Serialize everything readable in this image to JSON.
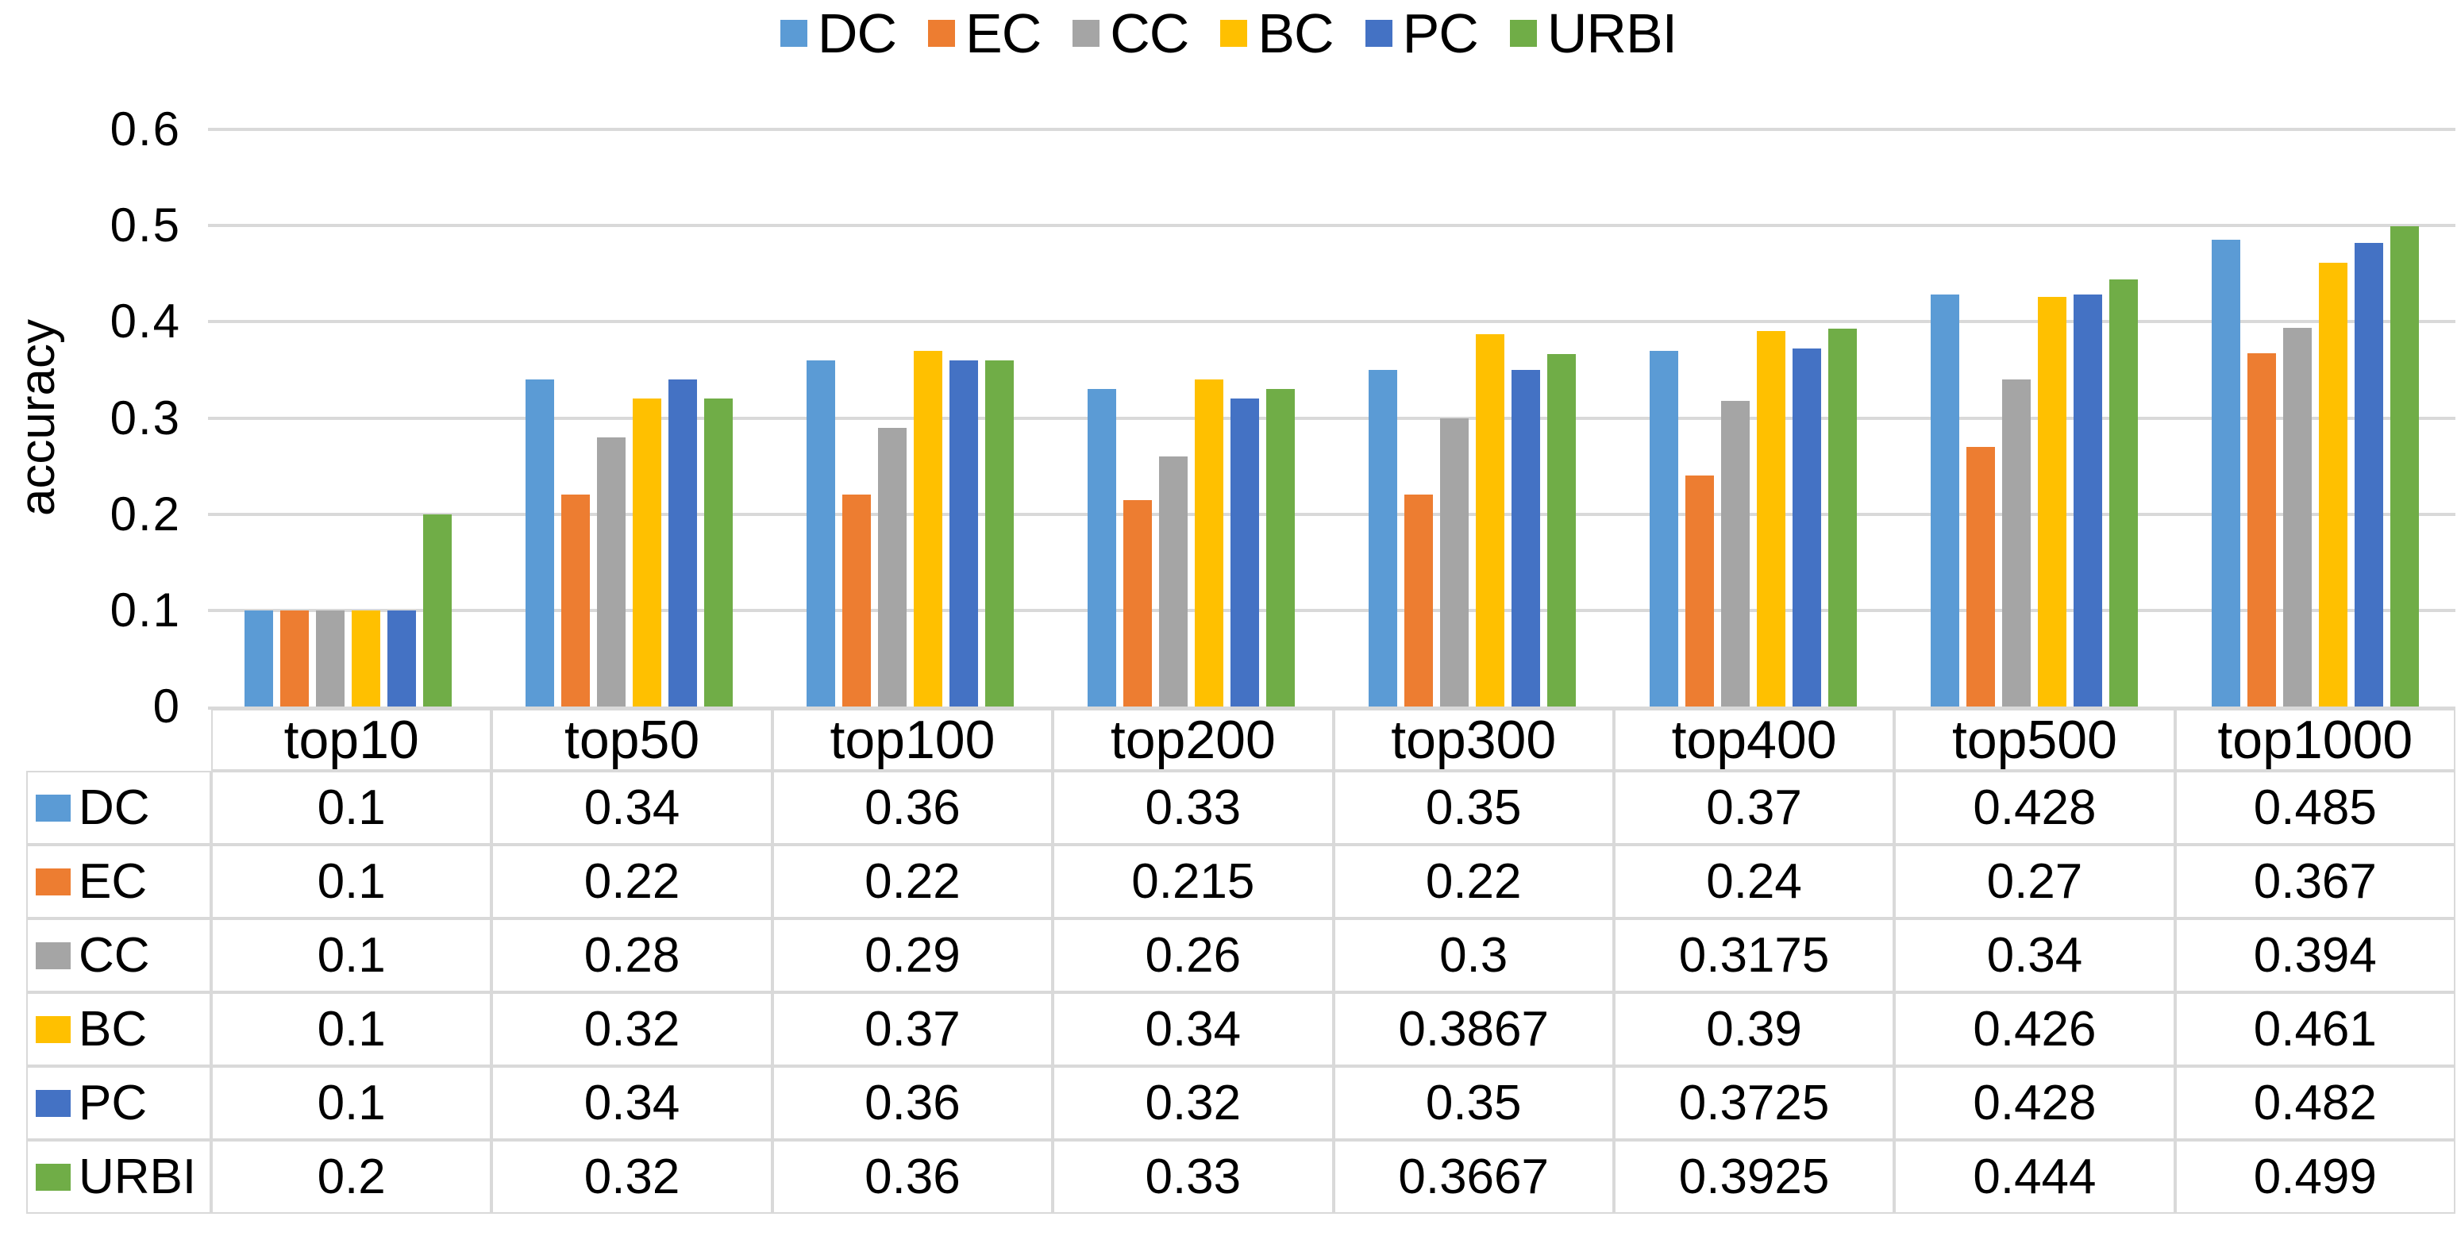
{
  "chart_data": {
    "type": "bar",
    "title": "",
    "ylabel": "accuracy",
    "xlabel": "",
    "categories": [
      "top10",
      "top50",
      "top100",
      "top200",
      "top300",
      "top400",
      "top500",
      "top1000"
    ],
    "series": [
      {
        "name": "DC",
        "color": "#5B9BD5",
        "values": [
          0.1,
          0.34,
          0.36,
          0.33,
          0.35,
          0.37,
          0.428,
          0.485
        ]
      },
      {
        "name": "EC",
        "color": "#ED7D31",
        "values": [
          0.1,
          0.22,
          0.22,
          0.215,
          0.22,
          0.24,
          0.27,
          0.367
        ]
      },
      {
        "name": "CC",
        "color": "#A5A5A5",
        "values": [
          0.1,
          0.28,
          0.29,
          0.26,
          0.3,
          0.3175,
          0.34,
          0.394
        ]
      },
      {
        "name": "BC",
        "color": "#FFC000",
        "values": [
          0.1,
          0.32,
          0.37,
          0.34,
          0.3867,
          0.39,
          0.426,
          0.461
        ]
      },
      {
        "name": "PC",
        "color": "#4472C4",
        "values": [
          0.1,
          0.34,
          0.36,
          0.32,
          0.35,
          0.3725,
          0.428,
          0.482
        ]
      },
      {
        "name": "URBI",
        "color": "#70AD47",
        "values": [
          0.2,
          0.32,
          0.36,
          0.33,
          0.3667,
          0.3925,
          0.444,
          0.499
        ]
      }
    ],
    "ylim": [
      0,
      0.6
    ],
    "yticks": [
      {
        "value": 0.6,
        "label": "0.6"
      },
      {
        "value": 0.5,
        "label": "0.5"
      },
      {
        "value": 0.4,
        "label": "0.4"
      },
      {
        "value": 0.3,
        "label": "0.3"
      },
      {
        "value": 0.2,
        "label": "0.2"
      },
      {
        "value": 0.1,
        "label": "0.1"
      },
      {
        "value": 0,
        "label": "0"
      }
    ],
    "grid": true,
    "legend_position": "top",
    "legend": [
      "DC",
      "EC",
      "CC",
      "BC",
      "PC",
      "URBI"
    ]
  },
  "table": {
    "header": [
      "top10",
      "top50",
      "top100",
      "top200",
      "top300",
      "top400",
      "top500",
      "top1000"
    ],
    "rows": [
      {
        "name": "DC",
        "color": "#5B9BD5",
        "values": [
          "0.1",
          "0.34",
          "0.36",
          "0.33",
          "0.35",
          "0.37",
          "0.428",
          "0.485"
        ]
      },
      {
        "name": "EC",
        "color": "#ED7D31",
        "values": [
          "0.1",
          "0.22",
          "0.22",
          "0.215",
          "0.22",
          "0.24",
          "0.27",
          "0.367"
        ]
      },
      {
        "name": "CC",
        "color": "#A5A5A5",
        "values": [
          "0.1",
          "0.28",
          "0.29",
          "0.26",
          "0.3",
          "0.3175",
          "0.34",
          "0.394"
        ]
      },
      {
        "name": "BC",
        "color": "#FFC000",
        "values": [
          "0.1",
          "0.32",
          "0.37",
          "0.34",
          "0.3867",
          "0.39",
          "0.426",
          "0.461"
        ]
      },
      {
        "name": "PC",
        "color": "#4472C4",
        "values": [
          "0.1",
          "0.34",
          "0.36",
          "0.32",
          "0.35",
          "0.3725",
          "0.428",
          "0.482"
        ]
      },
      {
        "name": "URBI",
        "color": "#70AD47",
        "values": [
          "0.2",
          "0.32",
          "0.36",
          "0.33",
          "0.3667",
          "0.3925",
          "0.444",
          "0.499"
        ]
      }
    ]
  },
  "colors": {
    "gridline": "#D9D9D9",
    "table_border": "#D9D9D9",
    "text": "#000000",
    "background": "#FFFFFF"
  }
}
